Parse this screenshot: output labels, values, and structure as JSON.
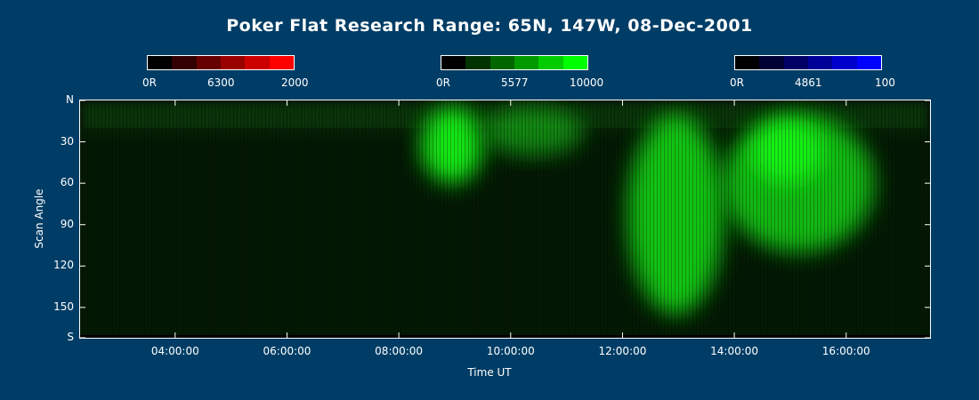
{
  "chart_data": {
    "type": "heatmap",
    "title": "Poker Flat Research Range: 65N, 147W, 08-Dec-2001",
    "xlabel": "Time UT",
    "ylabel": "Scan Angle",
    "x_ticks": [
      "04:00:00",
      "06:00:00",
      "08:00:00",
      "10:00:00",
      "12:00:00",
      "14:00:00",
      "16:00:00"
    ],
    "x_tick_hours": [
      4,
      6,
      8,
      10,
      12,
      14,
      16
    ],
    "xlim_hours": [
      2.3,
      17.5
    ],
    "y_ticks": [
      "N",
      "30",
      "60",
      "90",
      "120",
      "150",
      "S"
    ],
    "y_tick_values": [
      0,
      30,
      60,
      90,
      120,
      150,
      172
    ],
    "ylim": [
      0,
      172
    ],
    "colorbars": [
      {
        "name": "6300",
        "min_label": "0R",
        "max_label": "2000",
        "colors": [
          "#000000",
          "#320000",
          "#660000",
          "#990000",
          "#cc0000",
          "#ff0000"
        ]
      },
      {
        "name": "5577",
        "min_label": "0R",
        "max_label": "10000",
        "colors": [
          "#000000",
          "#003300",
          "#006600",
          "#009900",
          "#00cc00",
          "#00ff00"
        ]
      },
      {
        "name": "4861",
        "min_label": "0R",
        "max_label": "100",
        "colors": [
          "#000000",
          "#000033",
          "#000066",
          "#000099",
          "#0000cc",
          "#0000ff"
        ]
      }
    ],
    "green_intensity_features": [
      {
        "x_hours": [
          8.4,
          9.5
        ],
        "y": [
          5,
          60
        ],
        "level": 0.95
      },
      {
        "x_hours": [
          9.5,
          11.3
        ],
        "y": [
          5,
          40
        ],
        "level": 0.5
      },
      {
        "x_hours": [
          12.1,
          13.8
        ],
        "y": [
          10,
          155
        ],
        "level": 0.8
      },
      {
        "x_hours": [
          13.8,
          16.5
        ],
        "y": [
          10,
          110
        ],
        "level": 0.75
      },
      {
        "x_hours": [
          14.3,
          15.6
        ],
        "y": [
          15,
          60
        ],
        "level": 0.95
      }
    ],
    "grid": false
  }
}
